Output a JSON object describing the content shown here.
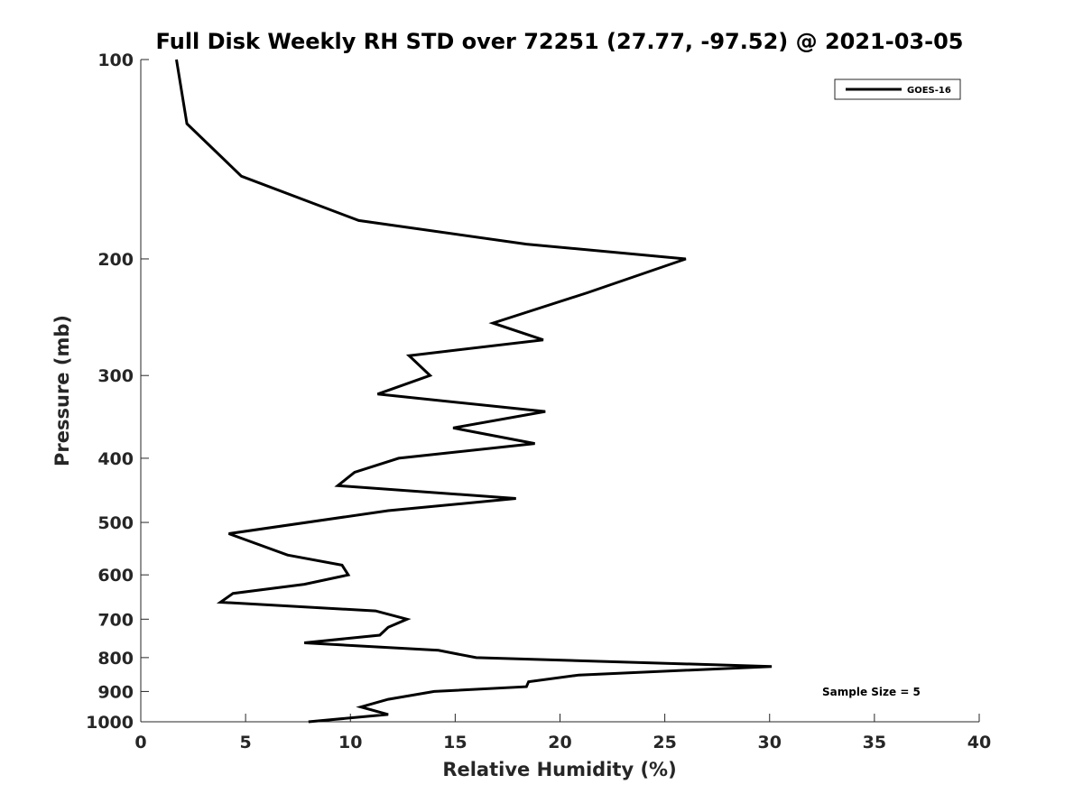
{
  "chart_data": {
    "type": "line",
    "title": "Full Disk Weekly RH STD over 72251 (27.77, -97.52) @ 2021-03-05",
    "xlabel": "Relative Humidity (%)",
    "ylabel": "Pressure (mb)",
    "xlim": [
      0,
      40
    ],
    "ylim": [
      100,
      1000
    ],
    "yscale": "log",
    "xticks": [
      0,
      5,
      10,
      15,
      20,
      25,
      30,
      35,
      40
    ],
    "yticks": [
      100,
      200,
      300,
      400,
      500,
      600,
      700,
      800,
      900,
      1000
    ],
    "grid": false,
    "legend": {
      "position": "top-right",
      "entries": [
        "GOES-16"
      ]
    },
    "annotation": "Sample Size = 5",
    "series": [
      {
        "name": "GOES-16",
        "color": "#000000",
        "x": [
          1.7,
          2.2,
          4.8,
          10.4,
          18.4,
          26.0,
          21.3,
          16.8,
          19.2,
          12.8,
          13.8,
          11.3,
          19.3,
          14.9,
          18.8,
          12.3,
          10.2,
          9.4,
          17.9,
          11.8,
          4.2,
          7.0,
          9.6,
          9.9,
          7.8,
          4.4,
          3.8,
          11.2,
          12.7,
          11.8,
          11.4,
          7.8,
          14.2,
          16.0,
          30.1,
          20.9,
          18.5,
          18.4,
          14.0,
          11.8,
          10.5,
          11.8,
          8.0
        ],
        "y": [
          100,
          125,
          150,
          175,
          190,
          200,
          225,
          250,
          265,
          280,
          300,
          320,
          340,
          360,
          380,
          400,
          420,
          440,
          460,
          480,
          520,
          560,
          580,
          600,
          620,
          640,
          660,
          680,
          700,
          720,
          740,
          760,
          780,
          800,
          825,
          850,
          870,
          885,
          900,
          925,
          950,
          975,
          1000
        ]
      }
    ]
  }
}
